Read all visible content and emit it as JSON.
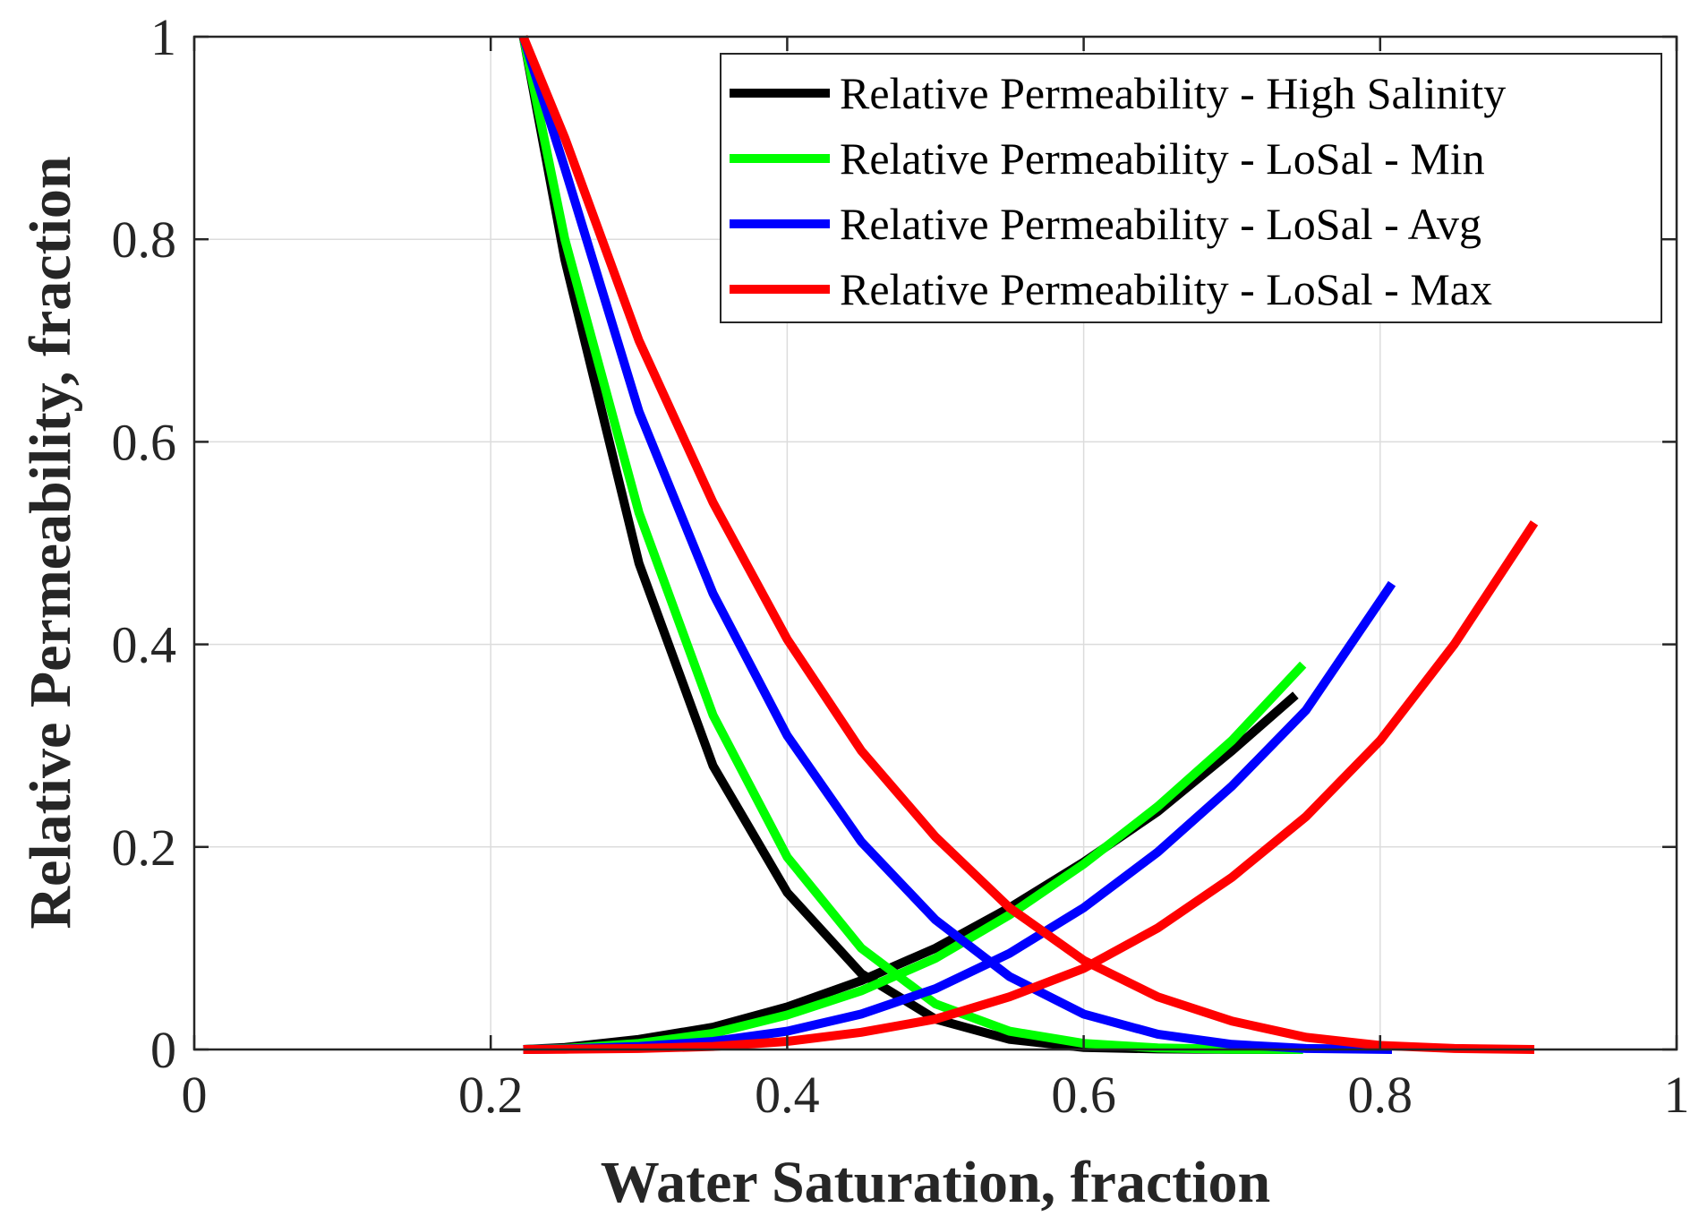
{
  "chart_data": {
    "type": "line",
    "title": "",
    "xlabel": "Water Saturation, fraction",
    "ylabel": "Relative Permeability, fraction",
    "xlim": [
      0,
      1
    ],
    "ylim": [
      0,
      1
    ],
    "xticks": [
      0,
      0.2,
      0.4,
      0.6,
      0.8,
      1
    ],
    "xtick_labels": [
      "0",
      "0.2",
      "0.4",
      "0.6",
      "0.8",
      "1"
    ],
    "yticks": [
      0,
      0.2,
      0.4,
      0.6,
      0.8,
      1
    ],
    "ytick_labels": [
      "0",
      "0.2",
      "0.4",
      "0.6",
      "0.8",
      "1"
    ],
    "grid": true,
    "legend_position": "top-right",
    "series": [
      {
        "name": "Relative Permeability - High Salinity",
        "color": "#000000",
        "curves": [
          {
            "x": [
              0.222,
              0.25,
              0.3,
              0.35,
              0.4,
              0.45,
              0.5,
              0.55,
              0.6,
              0.65,
              0.7,
              0.743
            ],
            "y": [
              1.0,
              0.78,
              0.48,
              0.28,
              0.155,
              0.075,
              0.03,
              0.01,
              0.002,
              0.0005,
              0.0001,
              0.0
            ]
          },
          {
            "x": [
              0.222,
              0.25,
              0.3,
              0.35,
              0.4,
              0.45,
              0.5,
              0.55,
              0.6,
              0.65,
              0.7,
              0.743
            ],
            "y": [
              0.0,
              0.002,
              0.01,
              0.022,
              0.042,
              0.068,
              0.1,
              0.14,
              0.185,
              0.235,
              0.295,
              0.35
            ]
          }
        ]
      },
      {
        "name": "Relative Permeability - LoSal - Min",
        "color": "#00ff00",
        "curves": [
          {
            "x": [
              0.222,
              0.25,
              0.3,
              0.35,
              0.4,
              0.45,
              0.5,
              0.55,
              0.6,
              0.65,
              0.7,
              0.748
            ],
            "y": [
              1.0,
              0.8,
              0.53,
              0.33,
              0.19,
              0.1,
              0.045,
              0.018,
              0.006,
              0.0015,
              0.0003,
              0.0
            ]
          },
          {
            "x": [
              0.222,
              0.25,
              0.3,
              0.35,
              0.4,
              0.45,
              0.5,
              0.55,
              0.6,
              0.65,
              0.7,
              0.748
            ],
            "y": [
              0.0,
              0.001,
              0.006,
              0.016,
              0.034,
              0.058,
              0.09,
              0.133,
              0.183,
              0.24,
              0.305,
              0.38
            ]
          }
        ]
      },
      {
        "name": "Relative Permeability - LoSal - Avg",
        "color": "#0000ff",
        "curves": [
          {
            "x": [
              0.222,
              0.25,
              0.3,
              0.35,
              0.4,
              0.45,
              0.5,
              0.55,
              0.6,
              0.65,
              0.7,
              0.75,
              0.808
            ],
            "y": [
              1.0,
              0.87,
              0.63,
              0.45,
              0.31,
              0.205,
              0.128,
              0.072,
              0.035,
              0.015,
              0.005,
              0.001,
              0.0
            ]
          },
          {
            "x": [
              0.222,
              0.25,
              0.3,
              0.35,
              0.4,
              0.45,
              0.5,
              0.55,
              0.6,
              0.65,
              0.7,
              0.75,
              0.808
            ],
            "y": [
              0.0,
              0.0005,
              0.003,
              0.008,
              0.018,
              0.035,
              0.06,
              0.095,
              0.14,
              0.195,
              0.26,
              0.335,
              0.46
            ]
          }
        ]
      },
      {
        "name": "Relative Permeability - LoSal - Max",
        "color": "#ff0000",
        "curves": [
          {
            "x": [
              0.222,
              0.25,
              0.3,
              0.35,
              0.4,
              0.45,
              0.5,
              0.55,
              0.6,
              0.65,
              0.7,
              0.75,
              0.8,
              0.85,
              0.904
            ],
            "y": [
              1.0,
              0.9,
              0.7,
              0.54,
              0.405,
              0.295,
              0.21,
              0.14,
              0.088,
              0.052,
              0.028,
              0.012,
              0.004,
              0.001,
              0.0
            ]
          },
          {
            "x": [
              0.222,
              0.25,
              0.3,
              0.35,
              0.4,
              0.45,
              0.5,
              0.55,
              0.6,
              0.65,
              0.7,
              0.75,
              0.8,
              0.85,
              0.904
            ],
            "y": [
              0.0,
              0.0003,
              0.001,
              0.003,
              0.008,
              0.017,
              0.03,
              0.052,
              0.08,
              0.12,
              0.17,
              0.23,
              0.305,
              0.4,
              0.52
            ]
          }
        ]
      }
    ]
  }
}
